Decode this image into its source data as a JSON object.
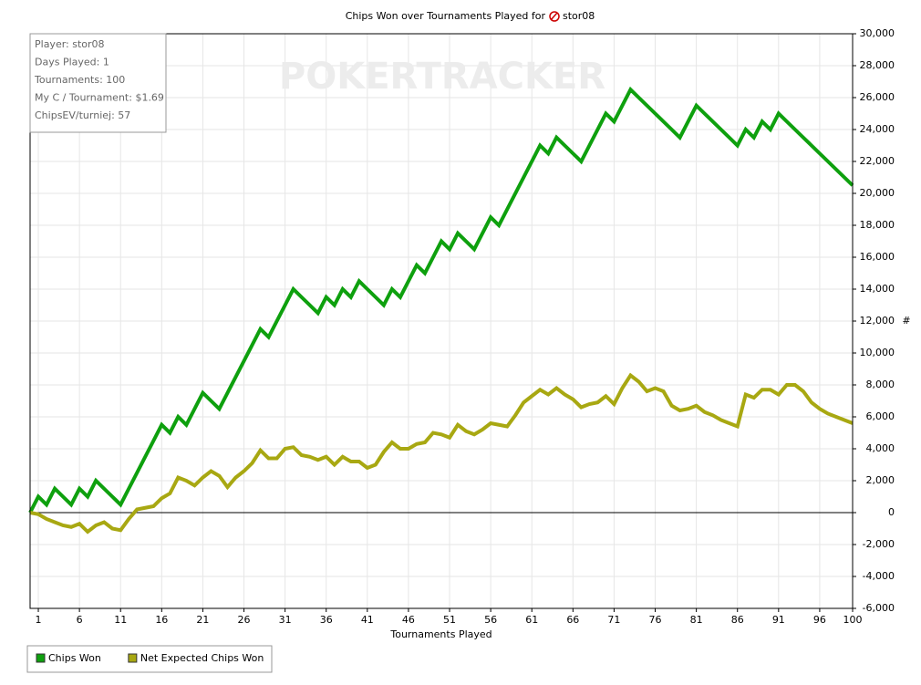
{
  "chart_data": {
    "type": "line",
    "title": "Chips Won over Tournaments Played for",
    "player": "stor08",
    "watermark": "POKERTRACKER",
    "x_label": "Tournaments Played",
    "y_label": "#",
    "info_box": [
      "Player: stor08",
      "Days Played: 1",
      "Tournaments: 100",
      "My C / Tournament: $1.69",
      "ChipsEV/turniej: 57"
    ],
    "x": [
      0,
      1,
      2,
      3,
      4,
      5,
      6,
      7,
      8,
      9,
      10,
      11,
      12,
      13,
      14,
      15,
      16,
      17,
      18,
      19,
      20,
      21,
      22,
      23,
      24,
      25,
      26,
      27,
      28,
      29,
      30,
      31,
      32,
      33,
      34,
      35,
      36,
      37,
      38,
      39,
      40,
      41,
      42,
      43,
      44,
      45,
      46,
      47,
      48,
      49,
      50,
      51,
      52,
      53,
      54,
      55,
      56,
      57,
      58,
      59,
      60,
      61,
      62,
      63,
      64,
      65,
      66,
      67,
      68,
      69,
      70,
      71,
      72,
      73,
      74,
      75,
      76,
      77,
      78,
      79,
      80,
      81,
      82,
      83,
      84,
      85,
      86,
      87,
      88,
      89,
      90,
      91,
      92,
      93,
      94,
      95,
      96,
      97,
      98,
      99,
      100
    ],
    "series": [
      {
        "name": "Chips Won",
        "color": "#0ea00e",
        "values": [
          0,
          1000,
          500,
          1500,
          1000,
          500,
          1500,
          1000,
          2000,
          1500,
          1000,
          500,
          1500,
          2500,
          3500,
          4500,
          5500,
          5000,
          6000,
          5500,
          6500,
          7500,
          7000,
          6500,
          7500,
          8500,
          9500,
          10500,
          11500,
          11000,
          12000,
          13000,
          14000,
          13500,
          13000,
          12500,
          13500,
          13000,
          14000,
          13500,
          14500,
          14000,
          13500,
          13000,
          14000,
          13500,
          14500,
          15500,
          15000,
          16000,
          17000,
          16500,
          17500,
          17000,
          16500,
          17500,
          18500,
          18000,
          19000,
          20000,
          21000,
          22000,
          23000,
          22500,
          23500,
          23000,
          22500,
          22000,
          23000,
          24000,
          25000,
          24500,
          25500,
          26500,
          26000,
          25500,
          25000,
          24500,
          24000,
          23500,
          24500,
          25500,
          25000,
          24500,
          24000,
          23500,
          23000,
          24000,
          23500,
          24500,
          24000,
          25000,
          24500,
          24000,
          23500,
          23000,
          22500,
          22000,
          21500,
          21000,
          20500
        ]
      },
      {
        "name": "Net Expected Chips Won",
        "color": "#a8a812",
        "values": [
          0,
          -100,
          -400,
          -600,
          -800,
          -900,
          -700,
          -1200,
          -800,
          -600,
          -1000,
          -1100,
          -400,
          200,
          300,
          400,
          900,
          1200,
          2200,
          2000,
          1700,
          2200,
          2600,
          2300,
          1600,
          2200,
          2600,
          3100,
          3900,
          3400,
          3400,
          4000,
          4100,
          3600,
          3500,
          3300,
          3500,
          3000,
          3500,
          3200,
          3200,
          2800,
          3000,
          3800,
          4400,
          4000,
          4000,
          4300,
          4400,
          5000,
          4900,
          4700,
          5500,
          5100,
          4900,
          5200,
          5600,
          5500,
          5400,
          6100,
          6900,
          7300,
          7700,
          7400,
          7800,
          7400,
          7100,
          6600,
          6800,
          6900,
          7300,
          6800,
          7800,
          8600,
          8200,
          7600,
          7800,
          7600,
          6700,
          6400,
          6500,
          6700,
          6300,
          6100,
          5800,
          5600,
          5400,
          7400,
          7200,
          7700,
          7700,
          7400,
          8000,
          8000,
          7600,
          6900,
          6500,
          6200,
          6000,
          5800,
          5600
        ]
      }
    ],
    "xlim": [
      0,
      100
    ],
    "xticks": [
      1,
      6,
      11,
      16,
      21,
      26,
      31,
      36,
      41,
      46,
      51,
      56,
      61,
      66,
      71,
      76,
      81,
      86,
      91,
      96,
      100
    ],
    "ylim": [
      -6000,
      30000
    ],
    "yticks": [
      {
        "value": -6000,
        "label": "-6,000"
      },
      {
        "value": -4000,
        "label": "-4,000"
      },
      {
        "value": -2000,
        "label": "-2,000"
      },
      0,
      {
        "value": 2000,
        "label": "2,000"
      },
      {
        "value": 4000,
        "label": "4,000"
      },
      {
        "value": 6000,
        "label": "6,000"
      },
      {
        "value": 8000,
        "label": "8,000"
      },
      {
        "value": 10000,
        "label": "10,000"
      },
      {
        "value": 12000,
        "label": "12,000"
      },
      {
        "value": 14000,
        "label": "14,000"
      },
      {
        "value": 16000,
        "label": "16,000"
      },
      {
        "value": 18000,
        "label": "18,000"
      },
      {
        "value": 20000,
        "label": "20,000"
      },
      {
        "value": 22000,
        "label": "22,000"
      },
      {
        "value": 24000,
        "label": "24,000"
      },
      {
        "value": 26000,
        "label": "26,000"
      },
      {
        "value": 28000,
        "label": "28,000"
      },
      {
        "value": 30000,
        "label": "30,000"
      }
    ],
    "grid": true,
    "legend": "bottom-left"
  }
}
